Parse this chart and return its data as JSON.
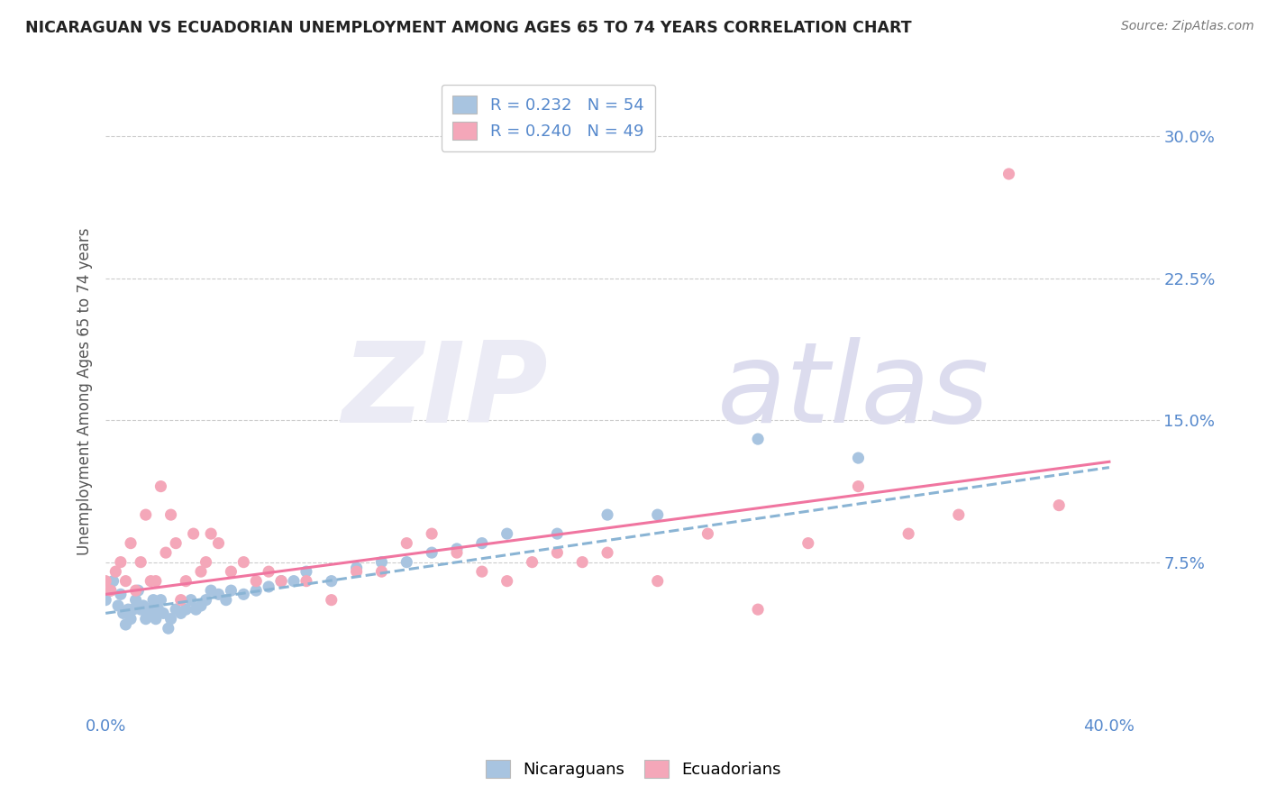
{
  "title": "NICARAGUAN VS ECUADORIAN UNEMPLOYMENT AMONG AGES 65 TO 74 YEARS CORRELATION CHART",
  "source": "Source: ZipAtlas.com",
  "ylabel": "Unemployment Among Ages 65 to 74 years",
  "xlim": [
    0.0,
    0.42
  ],
  "ylim": [
    -0.005,
    0.335
  ],
  "xticks": [
    0.0,
    0.4
  ],
  "xticklabels": [
    "0.0%",
    "40.0%"
  ],
  "yticks": [
    0.0,
    0.075,
    0.15,
    0.225,
    0.3
  ],
  "yticklabels": [
    "",
    "7.5%",
    "15.0%",
    "22.5%",
    "30.0%"
  ],
  "nicaraguan_color": "#a8c4e0",
  "ecuadorian_color": "#f4a7b9",
  "nicaraguan_line_color": "#8ab4d4",
  "ecuadorian_line_color": "#f075a0",
  "r_nicaraguan": 0.232,
  "n_nicaraguan": 54,
  "r_ecuadorian": 0.24,
  "n_ecuadorian": 49,
  "background_color": "#ffffff",
  "grid_color": "#cccccc",
  "tick_label_color": "#5588cc",
  "r_value_color": "#5588cc",
  "nicaraguan_x": [
    0.0,
    0.002,
    0.003,
    0.005,
    0.006,
    0.007,
    0.008,
    0.009,
    0.01,
    0.011,
    0.012,
    0.013,
    0.014,
    0.015,
    0.016,
    0.017,
    0.018,
    0.019,
    0.02,
    0.021,
    0.022,
    0.023,
    0.025,
    0.026,
    0.028,
    0.03,
    0.032,
    0.034,
    0.036,
    0.038,
    0.04,
    0.042,
    0.045,
    0.048,
    0.05,
    0.055,
    0.06,
    0.065,
    0.07,
    0.075,
    0.08,
    0.09,
    0.1,
    0.11,
    0.12,
    0.13,
    0.14,
    0.15,
    0.16,
    0.18,
    0.2,
    0.22,
    0.26,
    0.3
  ],
  "nicaraguan_y": [
    0.055,
    0.06,
    0.065,
    0.052,
    0.058,
    0.048,
    0.042,
    0.05,
    0.045,
    0.05,
    0.055,
    0.06,
    0.05,
    0.052,
    0.045,
    0.05,
    0.048,
    0.055,
    0.045,
    0.05,
    0.055,
    0.048,
    0.04,
    0.045,
    0.05,
    0.048,
    0.05,
    0.055,
    0.05,
    0.052,
    0.055,
    0.06,
    0.058,
    0.055,
    0.06,
    0.058,
    0.06,
    0.062,
    0.065,
    0.065,
    0.07,
    0.065,
    0.072,
    0.075,
    0.075,
    0.08,
    0.082,
    0.085,
    0.09,
    0.09,
    0.1,
    0.1,
    0.14,
    0.13
  ],
  "ecuadorian_x": [
    0.0,
    0.002,
    0.004,
    0.006,
    0.008,
    0.01,
    0.012,
    0.014,
    0.016,
    0.018,
    0.02,
    0.022,
    0.024,
    0.026,
    0.028,
    0.03,
    0.032,
    0.035,
    0.038,
    0.04,
    0.042,
    0.045,
    0.05,
    0.055,
    0.06,
    0.065,
    0.07,
    0.08,
    0.09,
    0.1,
    0.11,
    0.12,
    0.13,
    0.14,
    0.15,
    0.16,
    0.17,
    0.18,
    0.19,
    0.2,
    0.22,
    0.24,
    0.26,
    0.28,
    0.3,
    0.32,
    0.34,
    0.36,
    0.38
  ],
  "ecuadorian_y": [
    0.065,
    0.06,
    0.07,
    0.075,
    0.065,
    0.085,
    0.06,
    0.075,
    0.1,
    0.065,
    0.065,
    0.115,
    0.08,
    0.1,
    0.085,
    0.055,
    0.065,
    0.09,
    0.07,
    0.075,
    0.09,
    0.085,
    0.07,
    0.075,
    0.065,
    0.07,
    0.065,
    0.065,
    0.055,
    0.07,
    0.07,
    0.085,
    0.09,
    0.08,
    0.07,
    0.065,
    0.075,
    0.08,
    0.075,
    0.08,
    0.065,
    0.09,
    0.05,
    0.085,
    0.115,
    0.09,
    0.1,
    0.28,
    0.105
  ],
  "nic_line_x": [
    0.0,
    0.4
  ],
  "nic_line_y": [
    0.048,
    0.125
  ],
  "ecu_line_x": [
    0.0,
    0.4
  ],
  "ecu_line_y": [
    0.058,
    0.128
  ]
}
